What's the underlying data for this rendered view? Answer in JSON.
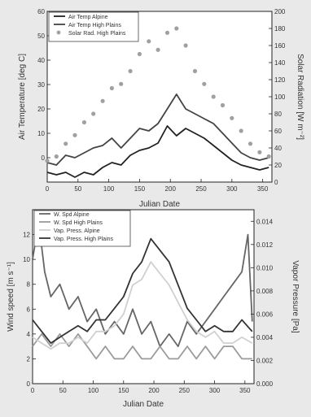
{
  "chart_data": [
    {
      "type": "line",
      "xlabel": "Julian Date",
      "ylabel": "Air Temperature [deg C]",
      "y2label": "Solar Radiation [W m⁻²]",
      "xlim": [
        0,
        365
      ],
      "ylim": [
        -10,
        60
      ],
      "y2lim": [
        0,
        200
      ],
      "xticks": [
        0,
        50,
        100,
        150,
        200,
        250,
        300,
        350
      ],
      "yticks": [
        0,
        10,
        20,
        30,
        40,
        50,
        60
      ],
      "y2ticks": [
        0,
        20,
        40,
        60,
        80,
        100,
        120,
        140,
        160,
        180,
        200
      ],
      "legend": "top-left",
      "series": [
        {
          "name": "Air Temp Alpine",
          "axis": "left",
          "style": "line",
          "color": "#222222",
          "x": [
            0,
            15,
            30,
            45,
            60,
            75,
            90,
            105,
            120,
            135,
            150,
            165,
            180,
            195,
            210,
            225,
            240,
            255,
            270,
            285,
            300,
            315,
            330,
            345,
            360
          ],
          "y": [
            -6,
            -7,
            -6,
            -8,
            -6,
            -7,
            -4,
            -2,
            -3,
            1,
            3,
            4,
            6,
            13,
            9,
            12,
            10,
            8,
            5,
            2,
            -1,
            -3,
            -4,
            -5,
            -4
          ]
        },
        {
          "name": "Air Temp High Plains",
          "axis": "left",
          "style": "line",
          "color": "#444444",
          "x": [
            0,
            15,
            30,
            45,
            60,
            75,
            90,
            105,
            120,
            135,
            150,
            165,
            180,
            195,
            210,
            225,
            240,
            255,
            270,
            285,
            300,
            315,
            330,
            345,
            360
          ],
          "y": [
            -2,
            -3,
            1,
            0,
            2,
            4,
            5,
            8,
            4,
            8,
            12,
            11,
            14,
            20,
            26,
            20,
            18,
            16,
            14,
            10,
            6,
            2,
            0,
            -1,
            0
          ]
        },
        {
          "name": "Solar Rad. High Plains",
          "axis": "right",
          "style": "markers",
          "color": "#a0a0a0",
          "x": [
            0,
            15,
            30,
            45,
            60,
            75,
            90,
            105,
            120,
            135,
            150,
            165,
            180,
            195,
            210,
            225,
            240,
            255,
            270,
            285,
            300,
            315,
            330,
            345,
            360
          ],
          "y": [
            25,
            30,
            45,
            55,
            70,
            80,
            95,
            110,
            115,
            130,
            150,
            165,
            155,
            175,
            180,
            160,
            130,
            115,
            100,
            90,
            75,
            60,
            45,
            35,
            30
          ]
        }
      ]
    },
    {
      "type": "line",
      "xlabel": "Julian Date",
      "ylabel": "Wind speed [m s⁻¹]",
      "y2label": "Vapor Pressure [Pa]",
      "xlim": [
        0,
        365
      ],
      "ylim": [
        0,
        14
      ],
      "y2lim": [
        0,
        0.015
      ],
      "xticks": [
        0,
        50,
        100,
        150,
        200,
        250,
        300,
        350
      ],
      "xtick_labels": [
        "0",
        "50",
        "100",
        "150",
        "200",
        "250",
        "300",
        "350"
      ],
      "yticks": [
        0,
        2,
        4,
        6,
        8,
        10,
        12
      ],
      "y2ticks": [
        0,
        0.002,
        0.004,
        0.006,
        0.008,
        0.01,
        0.012,
        0.014
      ],
      "y2tick_labels": [
        "0.000",
        "0.002",
        "0.004",
        "0.006",
        "0.008",
        "0.010",
        "0.012",
        "0.014"
      ],
      "legend": "top-left",
      "series": [
        {
          "name": "W. Spd Alpine",
          "axis": "left",
          "style": "line",
          "color": "#666666",
          "x": [
            0,
            10,
            20,
            30,
            45,
            60,
            75,
            90,
            105,
            120,
            135,
            150,
            165,
            180,
            195,
            210,
            225,
            240,
            255,
            270,
            285,
            300,
            315,
            330,
            345,
            355,
            362
          ],
          "y": [
            10,
            13,
            9,
            7,
            8,
            6,
            7,
            5,
            6,
            4,
            5,
            4,
            6,
            4,
            5,
            3,
            4,
            3,
            5,
            4,
            5,
            6,
            7,
            8,
            9,
            12,
            5
          ]
        },
        {
          "name": "W. Spd High Plains",
          "axis": "left",
          "style": "line",
          "color": "#9a9a9a",
          "x": [
            0,
            15,
            30,
            45,
            60,
            75,
            90,
            105,
            120,
            135,
            150,
            165,
            180,
            195,
            210,
            225,
            240,
            255,
            270,
            285,
            300,
            315,
            330,
            345,
            362
          ],
          "y": [
            3,
            4,
            3,
            4,
            3,
            4,
            3,
            2,
            3,
            2,
            2,
            3,
            2,
            2,
            3,
            2,
            2,
            3,
            2,
            3,
            2,
            3,
            3,
            2,
            2
          ]
        },
        {
          "name": "Vap. Press. Alpine",
          "axis": "right",
          "style": "line",
          "color": "#d0d0d0",
          "x": [
            0,
            15,
            30,
            45,
            60,
            75,
            90,
            105,
            120,
            135,
            150,
            165,
            180,
            195,
            210,
            225,
            240,
            255,
            270,
            285,
            300,
            315,
            330,
            345,
            362
          ],
          "y": [
            0.004,
            0.0035,
            0.003,
            0.0035,
            0.0035,
            0.004,
            0.0035,
            0.0045,
            0.0045,
            0.005,
            0.006,
            0.0085,
            0.009,
            0.0105,
            0.0095,
            0.0085,
            0.007,
            0.0055,
            0.0045,
            0.004,
            0.0045,
            0.0035,
            0.0035,
            0.004,
            0.0035
          ]
        },
        {
          "name": "Vap. Press. High Plains",
          "axis": "right",
          "style": "line",
          "color": "#333333",
          "x": [
            0,
            15,
            30,
            45,
            60,
            75,
            90,
            105,
            120,
            135,
            150,
            165,
            180,
            195,
            210,
            225,
            240,
            255,
            270,
            285,
            300,
            315,
            330,
            345,
            362
          ],
          "y": [
            0.0055,
            0.0045,
            0.0035,
            0.004,
            0.0045,
            0.005,
            0.0045,
            0.0055,
            0.0055,
            0.0065,
            0.0075,
            0.0095,
            0.0105,
            0.0125,
            0.0115,
            0.0105,
            0.0085,
            0.0065,
            0.0055,
            0.0045,
            0.005,
            0.0045,
            0.0045,
            0.0055,
            0.0045
          ]
        }
      ]
    }
  ]
}
